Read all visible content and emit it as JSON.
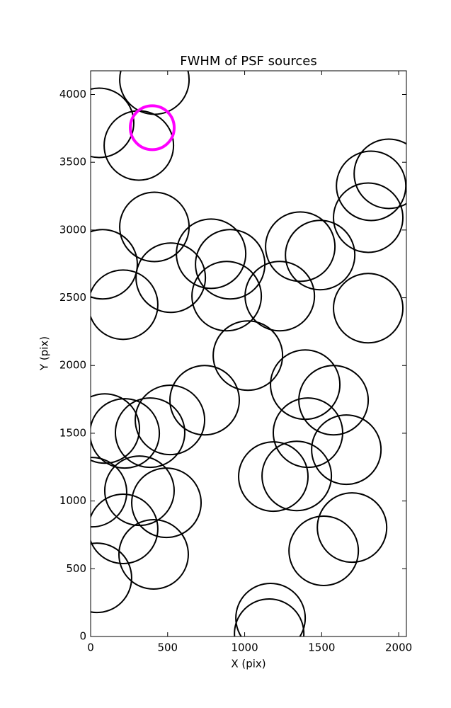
{
  "chart_data": {
    "type": "scatter",
    "title": "FWHM of PSF sources",
    "x_label": "X (pix)",
    "y_label": "Y (pix)",
    "xlim": [
      0,
      2050
    ],
    "ylim": [
      0,
      4175
    ],
    "xticks": [
      0,
      500,
      1000,
      1500,
      2000
    ],
    "yticks": [
      0,
      500,
      1000,
      1500,
      2000,
      2500,
      3000,
      3500,
      4000
    ],
    "series": [
      {
        "color": "#000000",
        "x": [
          414,
          55,
          313,
          1936,
          1821,
          1802,
          414,
          78,
          782,
          906,
          1361,
          1490,
          520,
          883,
          1228,
          1802,
          211,
          1021,
          1393,
          1577,
          740,
          515,
          92,
          221,
          386,
          1411,
          1660,
          1186,
          1338,
          9,
          317,
          492,
          211,
          409,
          1697,
          1513,
          41,
          1168,
          1159
        ],
        "values": [
          4110,
          3791,
          3624,
          3415,
          3326,
          3091,
          3023,
          2747,
          2825,
          2747,
          2877,
          2815,
          2648,
          2512,
          2512,
          2423,
          2449,
          2073,
          1859,
          1744,
          1744,
          1598,
          1535,
          1499,
          1504,
          1504,
          1379,
          1180,
          1185,
          1065,
          1076,
          987,
          794,
          606,
          804,
          632,
          433,
          136,
          21
        ]
      },
      {
        "color": "#ff00ff",
        "x": [
          400
        ],
        "values": [
          3755
        ]
      }
    ]
  }
}
